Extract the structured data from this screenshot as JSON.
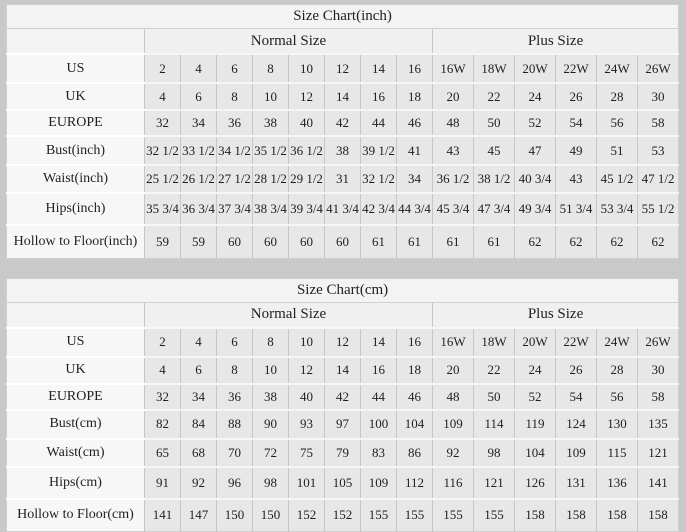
{
  "page": {
    "background_color": "#c9c9c9",
    "table_background_color": "#e7e7e7",
    "label_background_color": "#f7f7f7"
  },
  "tables": [
    {
      "title": "Size Chart(inch)",
      "group_headers": {
        "normal": "Normal Size",
        "plus": "Plus Size"
      },
      "rows": [
        {
          "label": "US",
          "values": [
            "2",
            "4",
            "6",
            "8",
            "10",
            "12",
            "14",
            "16",
            "16W",
            "18W",
            "20W",
            "22W",
            "24W",
            "26W"
          ]
        },
        {
          "label": "UK",
          "values": [
            "4",
            "6",
            "8",
            "10",
            "12",
            "14",
            "16",
            "18",
            "20",
            "22",
            "24",
            "26",
            "28",
            "30"
          ]
        },
        {
          "label": "EUROPE",
          "values": [
            "32",
            "34",
            "36",
            "38",
            "40",
            "42",
            "44",
            "46",
            "48",
            "50",
            "52",
            "54",
            "56",
            "58"
          ]
        },
        {
          "label": "Bust(inch)",
          "values": [
            "32 1/2",
            "33 1/2",
            "34 1/2",
            "35 1/2",
            "36 1/2",
            "38",
            "39 1/2",
            "41",
            "43",
            "45",
            "47",
            "49",
            "51",
            "53"
          ]
        },
        {
          "label": "Waist(inch)",
          "values": [
            "25 1/2",
            "26 1/2",
            "27 1/2",
            "28 1/2",
            "29 1/2",
            "31",
            "32 1/2",
            "34",
            "36 1/2",
            "38 1/2",
            "40 3/4",
            "43",
            "45 1/2",
            "47 1/2"
          ]
        },
        {
          "label": "Hips(inch)",
          "values": [
            "35 3/4",
            "36 3/4",
            "37 3/4",
            "38 3/4",
            "39 3/4",
            "41 3/4",
            "42 3/4",
            "44 3/4",
            "45 3/4",
            "47 3/4",
            "49 3/4",
            "51 3/4",
            "53 3/4",
            "55 1/2"
          ]
        },
        {
          "label": "Hollow to Floor(inch)",
          "values": [
            "59",
            "59",
            "60",
            "60",
            "60",
            "60",
            "61",
            "61",
            "61",
            "61",
            "62",
            "62",
            "62",
            "62"
          ]
        }
      ]
    },
    {
      "title": "Size Chart(cm)",
      "group_headers": {
        "normal": "Normal Size",
        "plus": "Plus Size"
      },
      "rows": [
        {
          "label": "US",
          "values": [
            "2",
            "4",
            "6",
            "8",
            "10",
            "12",
            "14",
            "16",
            "16W",
            "18W",
            "20W",
            "22W",
            "24W",
            "26W"
          ]
        },
        {
          "label": "UK",
          "values": [
            "4",
            "6",
            "8",
            "10",
            "12",
            "14",
            "16",
            "18",
            "20",
            "22",
            "24",
            "26",
            "28",
            "30"
          ]
        },
        {
          "label": "EUROPE",
          "values": [
            "32",
            "34",
            "36",
            "38",
            "40",
            "42",
            "44",
            "46",
            "48",
            "50",
            "52",
            "54",
            "56",
            "58"
          ]
        },
        {
          "label": "Bust(cm)",
          "values": [
            "82",
            "84",
            "88",
            "90",
            "93",
            "97",
            "100",
            "104",
            "109",
            "114",
            "119",
            "124",
            "130",
            "135"
          ]
        },
        {
          "label": "Waist(cm)",
          "values": [
            "65",
            "68",
            "70",
            "72",
            "75",
            "79",
            "83",
            "86",
            "92",
            "98",
            "104",
            "109",
            "115",
            "121"
          ]
        },
        {
          "label": "Hips(cm)",
          "values": [
            "91",
            "92",
            "96",
            "98",
            "101",
            "105",
            "109",
            "112",
            "116",
            "121",
            "126",
            "131",
            "136",
            "141"
          ]
        },
        {
          "label": "Hollow to Floor(cm)",
          "values": [
            "141",
            "147",
            "150",
            "150",
            "152",
            "152",
            "155",
            "155",
            "155",
            "155",
            "158",
            "158",
            "158",
            "158"
          ]
        }
      ]
    }
  ],
  "chart_data": [
    {
      "type": "table",
      "title": "Size Chart(inch)",
      "column_groups": [
        {
          "name": "Normal Size",
          "span": 8
        },
        {
          "name": "Plus Size",
          "span": 6
        }
      ],
      "row_headers": [
        "US",
        "UK",
        "EUROPE",
        "Bust(inch)",
        "Waist(inch)",
        "Hips(inch)",
        "Hollow to Floor(inch)"
      ],
      "rows": [
        [
          "2",
          "4",
          "6",
          "8",
          "10",
          "12",
          "14",
          "16",
          "16W",
          "18W",
          "20W",
          "22W",
          "24W",
          "26W"
        ],
        [
          "4",
          "6",
          "8",
          "10",
          "12",
          "14",
          "16",
          "18",
          "20",
          "22",
          "24",
          "26",
          "28",
          "30"
        ],
        [
          "32",
          "34",
          "36",
          "38",
          "40",
          "42",
          "44",
          "46",
          "48",
          "50",
          "52",
          "54",
          "56",
          "58"
        ],
        [
          "32 1/2",
          "33 1/2",
          "34 1/2",
          "35 1/2",
          "36 1/2",
          "38",
          "39 1/2",
          "41",
          "43",
          "45",
          "47",
          "49",
          "51",
          "53"
        ],
        [
          "25 1/2",
          "26 1/2",
          "27 1/2",
          "28 1/2",
          "29 1/2",
          "31",
          "32 1/2",
          "34",
          "36 1/2",
          "38 1/2",
          "40 3/4",
          "43",
          "45 1/2",
          "47 1/2"
        ],
        [
          "35 3/4",
          "36 3/4",
          "37 3/4",
          "38 3/4",
          "39 3/4",
          "41 3/4",
          "42 3/4",
          "44 3/4",
          "45 3/4",
          "47 3/4",
          "49 3/4",
          "51 3/4",
          "53 3/4",
          "55 1/2"
        ],
        [
          "59",
          "59",
          "60",
          "60",
          "60",
          "60",
          "61",
          "61",
          "61",
          "61",
          "62",
          "62",
          "62",
          "62"
        ]
      ]
    },
    {
      "type": "table",
      "title": "Size Chart(cm)",
      "column_groups": [
        {
          "name": "Normal Size",
          "span": 8
        },
        {
          "name": "Plus Size",
          "span": 6
        }
      ],
      "row_headers": [
        "US",
        "UK",
        "EUROPE",
        "Bust(cm)",
        "Waist(cm)",
        "Hips(cm)",
        "Hollow to Floor(cm)"
      ],
      "rows": [
        [
          "2",
          "4",
          "6",
          "8",
          "10",
          "12",
          "14",
          "16",
          "16W",
          "18W",
          "20W",
          "22W",
          "24W",
          "26W"
        ],
        [
          "4",
          "6",
          "8",
          "10",
          "12",
          "14",
          "16",
          "18",
          "20",
          "22",
          "24",
          "26",
          "28",
          "30"
        ],
        [
          "32",
          "34",
          "36",
          "38",
          "40",
          "42",
          "44",
          "46",
          "48",
          "50",
          "52",
          "54",
          "56",
          "58"
        ],
        [
          "82",
          "84",
          "88",
          "90",
          "93",
          "97",
          "100",
          "104",
          "109",
          "114",
          "119",
          "124",
          "130",
          "135"
        ],
        [
          "65",
          "68",
          "70",
          "72",
          "75",
          "79",
          "83",
          "86",
          "92",
          "98",
          "104",
          "109",
          "115",
          "121"
        ],
        [
          "91",
          "92",
          "96",
          "98",
          "101",
          "105",
          "109",
          "112",
          "116",
          "121",
          "126",
          "131",
          "136",
          "141"
        ],
        [
          "141",
          "147",
          "150",
          "150",
          "152",
          "152",
          "155",
          "155",
          "155",
          "155",
          "158",
          "158",
          "158",
          "158"
        ]
      ]
    }
  ]
}
